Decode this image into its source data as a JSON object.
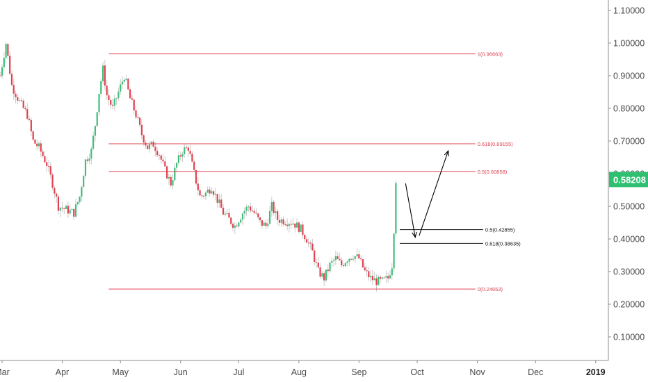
{
  "chart_data": {
    "type": "candlestick",
    "y_axis": {
      "ticks": [
        "1.10000",
        "1.00000",
        "0.90000",
        "0.80000",
        "0.70000",
        "0.60000",
        "0.50000",
        "0.40000",
        "0.30000",
        "0.20000",
        "0.10000"
      ],
      "tick_values": [
        1.1,
        1.0,
        0.9,
        0.8,
        0.7,
        0.6,
        0.5,
        0.4,
        0.3,
        0.2,
        0.1
      ],
      "range": [
        0.03,
        1.13
      ],
      "position": "right"
    },
    "x_axis": {
      "ticks": [
        {
          "label": "Mar",
          "date": "2018-03-01"
        },
        {
          "label": "Apr",
          "date": "2018-04-01"
        },
        {
          "label": "May",
          "date": "2018-05-01"
        },
        {
          "label": "Jun",
          "date": "2018-06-01"
        },
        {
          "label": "Jul",
          "date": "2018-07-01"
        },
        {
          "label": "Aug",
          "date": "2018-08-01"
        },
        {
          "label": "Sep",
          "date": "2018-09-01"
        },
        {
          "label": "Oct",
          "date": "2018-10-01"
        },
        {
          "label": "Nov",
          "date": "2018-11-01"
        },
        {
          "label": "Dec",
          "date": "2018-12-01"
        },
        {
          "label": "2019",
          "date": "2019-01-01",
          "bold": true
        }
      ]
    },
    "last_price": {
      "label": "0.58208",
      "value": 0.58208,
      "color": "#2fbf71"
    },
    "colors": {
      "up": "#3fbd7a",
      "down": "#e0424f",
      "fib_red": "#e0424f",
      "fib_black": "#111111"
    },
    "fib_levels_red": [
      {
        "label": "1(0.96663)",
        "value": 0.96663,
        "from": "2018-04-25",
        "to": "2018-10-31"
      },
      {
        "label": "0.618(0.69155)",
        "value": 0.69155,
        "from": "2018-04-25",
        "to": "2018-10-31"
      },
      {
        "label": "0.5(0.60658)",
        "value": 0.60658,
        "from": "2018-04-25",
        "to": "2018-10-31"
      },
      {
        "label": "0(0.24653)",
        "value": 0.24653,
        "from": "2018-04-25",
        "to": "2018-10-31"
      }
    ],
    "fib_levels_black": [
      {
        "label": "0.5(0.42855)",
        "value": 0.42855,
        "from": "2018-09-22",
        "to": "2018-11-04"
      },
      {
        "label": "0.618(0.38635)",
        "value": 0.38635,
        "from": "2018-09-22",
        "to": "2018-11-04"
      }
    ],
    "arrows": [
      {
        "from_date": "2018-09-25",
        "from_value": 0.57,
        "to_date": "2018-09-30",
        "to_value": 0.405
      },
      {
        "from_date": "2018-10-02",
        "from_value": 0.41,
        "to_date": "2018-10-17",
        "to_value": 0.67
      }
    ],
    "series_anchors": [
      [
        "2018-02-28",
        0.9
      ],
      [
        "2018-03-03",
        1.0
      ],
      [
        "2018-03-06",
        0.87
      ],
      [
        "2018-03-10",
        0.82
      ],
      [
        "2018-03-14",
        0.78
      ],
      [
        "2018-03-17",
        0.7
      ],
      [
        "2018-03-20",
        0.68
      ],
      [
        "2018-03-24",
        0.63
      ],
      [
        "2018-03-27",
        0.57
      ],
      [
        "2018-03-30",
        0.5
      ],
      [
        "2018-04-03",
        0.49
      ],
      [
        "2018-04-07",
        0.48
      ],
      [
        "2018-04-10",
        0.53
      ],
      [
        "2018-04-13",
        0.64
      ],
      [
        "2018-04-16",
        0.67
      ],
      [
        "2018-04-18",
        0.75
      ],
      [
        "2018-04-20",
        0.85
      ],
      [
        "2018-04-22",
        0.92
      ],
      [
        "2018-04-24",
        0.84
      ],
      [
        "2018-04-27",
        0.8
      ],
      [
        "2018-04-30",
        0.85
      ],
      [
        "2018-05-03",
        0.9
      ],
      [
        "2018-05-06",
        0.83
      ],
      [
        "2018-05-09",
        0.78
      ],
      [
        "2018-05-12",
        0.72
      ],
      [
        "2018-05-15",
        0.68
      ],
      [
        "2018-05-18",
        0.69
      ],
      [
        "2018-05-21",
        0.66
      ],
      [
        "2018-05-24",
        0.61
      ],
      [
        "2018-05-27",
        0.57
      ],
      [
        "2018-05-30",
        0.63
      ],
      [
        "2018-06-02",
        0.67
      ],
      [
        "2018-06-05",
        0.68
      ],
      [
        "2018-06-08",
        0.6
      ],
      [
        "2018-06-11",
        0.53
      ],
      [
        "2018-06-14",
        0.54
      ],
      [
        "2018-06-17",
        0.56
      ],
      [
        "2018-06-20",
        0.52
      ],
      [
        "2018-06-23",
        0.48
      ],
      [
        "2018-06-26",
        0.46
      ],
      [
        "2018-06-29",
        0.44
      ],
      [
        "2018-07-03",
        0.48
      ],
      [
        "2018-07-06",
        0.5
      ],
      [
        "2018-07-09",
        0.48
      ],
      [
        "2018-07-12",
        0.45
      ],
      [
        "2018-07-15",
        0.44
      ],
      [
        "2018-07-18",
        0.5
      ],
      [
        "2018-07-21",
        0.46
      ],
      [
        "2018-07-25",
        0.455
      ],
      [
        "2018-07-29",
        0.45
      ],
      [
        "2018-08-02",
        0.43
      ],
      [
        "2018-08-05",
        0.4
      ],
      [
        "2018-08-08",
        0.36
      ],
      [
        "2018-08-11",
        0.3
      ],
      [
        "2018-08-14",
        0.28
      ],
      [
        "2018-08-17",
        0.32
      ],
      [
        "2018-08-20",
        0.34
      ],
      [
        "2018-08-23",
        0.32
      ],
      [
        "2018-08-26",
        0.34
      ],
      [
        "2018-08-29",
        0.35
      ],
      [
        "2018-09-01",
        0.34
      ],
      [
        "2018-09-04",
        0.3
      ],
      [
        "2018-09-07",
        0.28
      ],
      [
        "2018-09-10",
        0.27
      ],
      [
        "2018-09-13",
        0.27
      ],
      [
        "2018-09-16",
        0.28
      ],
      [
        "2018-09-18",
        0.32
      ],
      [
        "2018-09-19",
        0.43
      ],
      [
        "2018-09-20",
        0.58208
      ]
    ]
  }
}
